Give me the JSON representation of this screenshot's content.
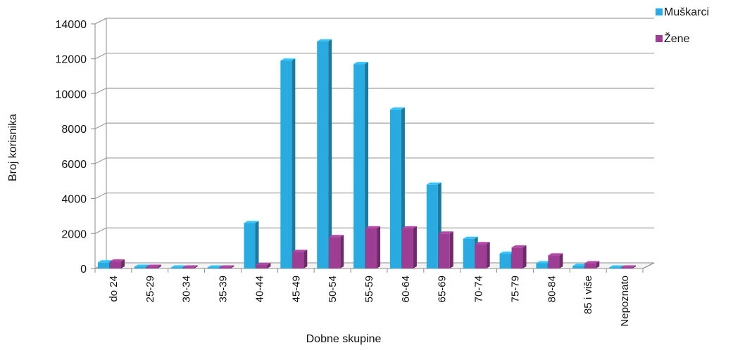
{
  "chart_data": {
    "type": "bar",
    "xlabel": "Dobne skupine",
    "ylabel": "Broj korisnika",
    "ylim": [
      0,
      14000
    ],
    "yticks": [
      0,
      2000,
      4000,
      6000,
      8000,
      10000,
      12000,
      14000
    ],
    "grid": true,
    "legend_position": "top-right",
    "categories": [
      "do 24",
      "25-29",
      "30-34",
      "35-39",
      "40-44",
      "45-49",
      "50-54",
      "55-59",
      "60-64",
      "65-69",
      "70-74",
      "75-79",
      "80-84",
      "85 i više",
      "Nepoznato"
    ],
    "series": [
      {
        "name": "Muškarci",
        "color": "#29ABE2",
        "values": [
          350,
          100,
          0,
          0,
          2600,
          11900,
          13000,
          11700,
          9100,
          4800,
          1700,
          850,
          300,
          150,
          0
        ]
      },
      {
        "name": "Žene",
        "color": "#9E3D94",
        "values": [
          400,
          100,
          0,
          40,
          200,
          950,
          1800,
          2300,
          2300,
          2000,
          1400,
          1200,
          750,
          300,
          0
        ]
      }
    ]
  }
}
